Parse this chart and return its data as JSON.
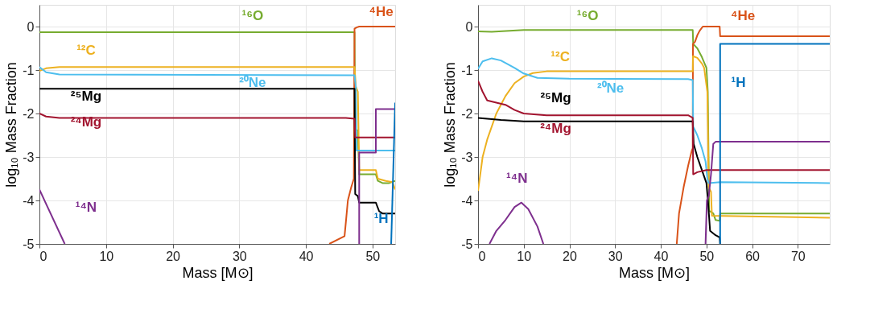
{
  "chart_data": [
    {
      "type": "line",
      "xlabel": "Mass [M⊙]",
      "ylabel": "log₁₀ Mass Fraction",
      "xlim": [
        0,
        53.4
      ],
      "ylim": [
        -5,
        0.5
      ],
      "xticks": [
        0,
        10,
        20,
        30,
        40,
        50
      ],
      "yticks": [
        -5,
        -4,
        -3,
        -2,
        -1,
        0
      ],
      "grid": true,
      "legend": false,
      "series": [
        {
          "name": "¹⁶O",
          "color": "#77ac30",
          "x": [
            0,
            47.3,
            47.4,
            47.8,
            48,
            50.5,
            50.8,
            51.5,
            52.5,
            53.4
          ],
          "values": [
            -0.13,
            -0.13,
            -2.35,
            -2.4,
            -3.4,
            -3.4,
            -3.55,
            -3.6,
            -3.6,
            -3.55
          ]
        },
        {
          "name": "⁴He",
          "color": "#d95319",
          "x": [
            43.5,
            45.8,
            46,
            46.3,
            46.8,
            47.2,
            47.3,
            47.6,
            48,
            53.4
          ],
          "values": [
            -5,
            -4.82,
            -4.5,
            -4.0,
            -3.7,
            -3.5,
            -0.05,
            -0.02,
            0,
            0
          ]
        },
        {
          "name": "¹²C",
          "color": "#edb120",
          "x": [
            0,
            1,
            3,
            47.3,
            47.5,
            47.8,
            48,
            50.5,
            50.8,
            52,
            53,
            53.4
          ],
          "values": [
            -1.02,
            -0.96,
            -0.93,
            -0.93,
            -1.38,
            -1.5,
            -3.3,
            -3.3,
            -3.5,
            -3.55,
            -3.58,
            -3.75
          ]
        },
        {
          "name": "²⁰Ne",
          "color": "#4dbeee",
          "x": [
            0,
            1,
            3,
            47.3,
            47.5,
            47.6,
            53.4
          ],
          "values": [
            -0.93,
            -1.05,
            -1.1,
            -1.12,
            -1.4,
            -2.85,
            -2.85
          ]
        },
        {
          "name": "²⁵Mg",
          "color": "#000000",
          "x": [
            0,
            47.3,
            47.4,
            47.8,
            48,
            50.5,
            51,
            51.5,
            53.4
          ],
          "values": [
            -1.43,
            -1.43,
            -3.85,
            -3.9,
            -4.05,
            -4.05,
            -4.25,
            -4.3,
            -4.3
          ]
        },
        {
          "name": "²⁴Mg",
          "color": "#a2142f",
          "x": [
            0,
            1,
            3,
            46,
            47.3,
            47.4,
            53.4
          ],
          "values": [
            -2.0,
            -2.07,
            -2.1,
            -2.1,
            -2.12,
            -2.55,
            -2.55
          ]
        },
        {
          "name": "¹⁴N",
          "color": "#7e2f8e",
          "x": [
            0,
            3.8,
            10,
            48,
            48,
            50.5,
            50.5,
            53.4
          ],
          "values": [
            -3.75,
            -5,
            null,
            -5,
            -2.9,
            -2.9,
            -1.9,
            -1.9
          ]
        },
        {
          "name": "¹H",
          "color": "#0072bd",
          "x": [
            52.8,
            53.4
          ],
          "values": [
            -5,
            -1.75
          ]
        }
      ]
    },
    {
      "type": "line",
      "xlabel": "Mass [M⊙]",
      "ylabel": "log₁₀ Mass Fraction",
      "xlim": [
        0,
        77
      ],
      "ylim": [
        -5,
        0.5
      ],
      "xticks": [
        0,
        10,
        20,
        30,
        40,
        50,
        60,
        70
      ],
      "yticks": [
        -5,
        -4,
        -3,
        -2,
        -1,
        0
      ],
      "grid": true,
      "legend": false,
      "series": [
        {
          "name": "¹⁶O",
          "color": "#77ac30",
          "x": [
            0,
            3,
            10,
            47,
            47.1,
            48,
            49,
            50,
            50.3,
            50.6,
            51.5,
            52,
            52.9,
            53,
            77
          ],
          "values": [
            -0.11,
            -0.12,
            -0.08,
            -0.08,
            -0.4,
            -0.5,
            -0.7,
            -0.95,
            -1.5,
            -4.24,
            -4.3,
            -4.45,
            -4.47,
            -4.3,
            -4.3
          ]
        },
        {
          "name": "⁴He",
          "color": "#d95319",
          "x": [
            43.5,
            44,
            45,
            46,
            46.8,
            47,
            47.05,
            47.5,
            48,
            48.5,
            49.2,
            52.9,
            53,
            77
          ],
          "values": [
            -5,
            -4.3,
            -3.7,
            -3.2,
            -2.85,
            -2.8,
            -0.4,
            -0.35,
            -0.2,
            -0.1,
            0,
            0,
            -0.22,
            -0.22
          ]
        },
        {
          "name": "¹²C",
          "color": "#edb120",
          "x": [
            0,
            1,
            2,
            4,
            6,
            8,
            10,
            12,
            15,
            47,
            47.05,
            48,
            49,
            49.5,
            50.2,
            50.5,
            51,
            51.2,
            77
          ],
          "values": [
            -3.78,
            -3.0,
            -2.6,
            -2.0,
            -1.6,
            -1.3,
            -1.15,
            -1.07,
            -1.03,
            -1.03,
            -0.68,
            -0.72,
            -0.85,
            -0.95,
            -1.5,
            -3.7,
            -3.8,
            -4.35,
            -4.4
          ]
        },
        {
          "name": "²⁰Ne",
          "color": "#4dbeee",
          "x": [
            0,
            1,
            3,
            5,
            8,
            10,
            13,
            20,
            46,
            47,
            47.1,
            48,
            49,
            49.8,
            50.2,
            50.5,
            53,
            77
          ],
          "values": [
            -0.97,
            -0.8,
            -0.73,
            -0.78,
            -0.95,
            -1.08,
            -1.18,
            -1.2,
            -1.21,
            -1.23,
            -2.3,
            -2.5,
            -2.8,
            -3.1,
            -3.5,
            -3.6,
            -3.58,
            -3.6
          ]
        },
        {
          "name": "²⁵Mg",
          "color": "#000000",
          "x": [
            0,
            5,
            10,
            47,
            47.2,
            48,
            49,
            50,
            50.4,
            50.8,
            52,
            52.9,
            53
          ],
          "values": [
            -2.1,
            -2.15,
            -2.18,
            -2.18,
            -2.7,
            -3.0,
            -3.3,
            -3.6,
            -4.1,
            -4.7,
            -4.8,
            -4.85,
            -5
          ]
        },
        {
          "name": "²⁴Mg",
          "color": "#a2142f",
          "x": [
            0,
            1,
            2,
            4,
            6,
            8,
            10,
            15,
            46,
            47,
            47.1,
            48,
            50,
            77
          ],
          "values": [
            -1.25,
            -1.5,
            -1.7,
            -1.75,
            -1.8,
            -1.92,
            -2.0,
            -2.04,
            -2.04,
            -2.1,
            -3.4,
            -3.35,
            -3.3,
            -3.3
          ]
        },
        {
          "name": "¹⁴N",
          "color": "#7e2f8e",
          "x": [
            2.5,
            4,
            6,
            8,
            9.5,
            11,
            13,
            14.3,
            30,
            49.8,
            50.1,
            50.5,
            51,
            51.5,
            52,
            77
          ],
          "values": [
            -5,
            -4.7,
            -4.45,
            -4.15,
            -4.05,
            -4.2,
            -4.6,
            -5,
            null,
            -5,
            -4.0,
            -3.9,
            -3.4,
            -2.7,
            -2.65,
            -2.65
          ]
        },
        {
          "name": "¹H",
          "color": "#0072bd",
          "x": [
            53,
            53,
            77
          ],
          "values": [
            -5,
            -0.4,
            -0.4
          ]
        }
      ]
    }
  ]
}
